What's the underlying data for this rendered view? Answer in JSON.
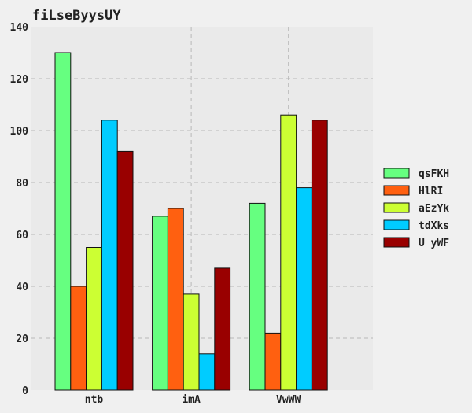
{
  "chart_data": {
    "type": "bar",
    "title": "fiLseByysUY",
    "categories": [
      "ntb",
      "imA",
      "VwWW"
    ],
    "series": [
      {
        "name": "qsFKH",
        "color": "#66ff80",
        "values": [
          130,
          67,
          72
        ]
      },
      {
        "name": "HlRI",
        "color": "#ff6010",
        "values": [
          40,
          70,
          22
        ]
      },
      {
        "name": "aEzYk",
        "color": "#ccff33",
        "values": [
          55,
          37,
          106
        ]
      },
      {
        "name": "tdXks",
        "color": "#00ccff",
        "values": [
          104,
          14,
          78
        ]
      },
      {
        "name": "U yWF",
        "color": "#990000",
        "values": [
          92,
          47,
          104
        ]
      }
    ],
    "yticks": [
      0,
      20,
      40,
      60,
      80,
      100,
      120,
      140
    ],
    "ylim": [
      0,
      140
    ],
    "grid": true,
    "legend": "right",
    "colors": {
      "plot_bg": "#eaeaea",
      "page_bg": "#f0f0f0",
      "grid": "#b8b8b8"
    }
  }
}
